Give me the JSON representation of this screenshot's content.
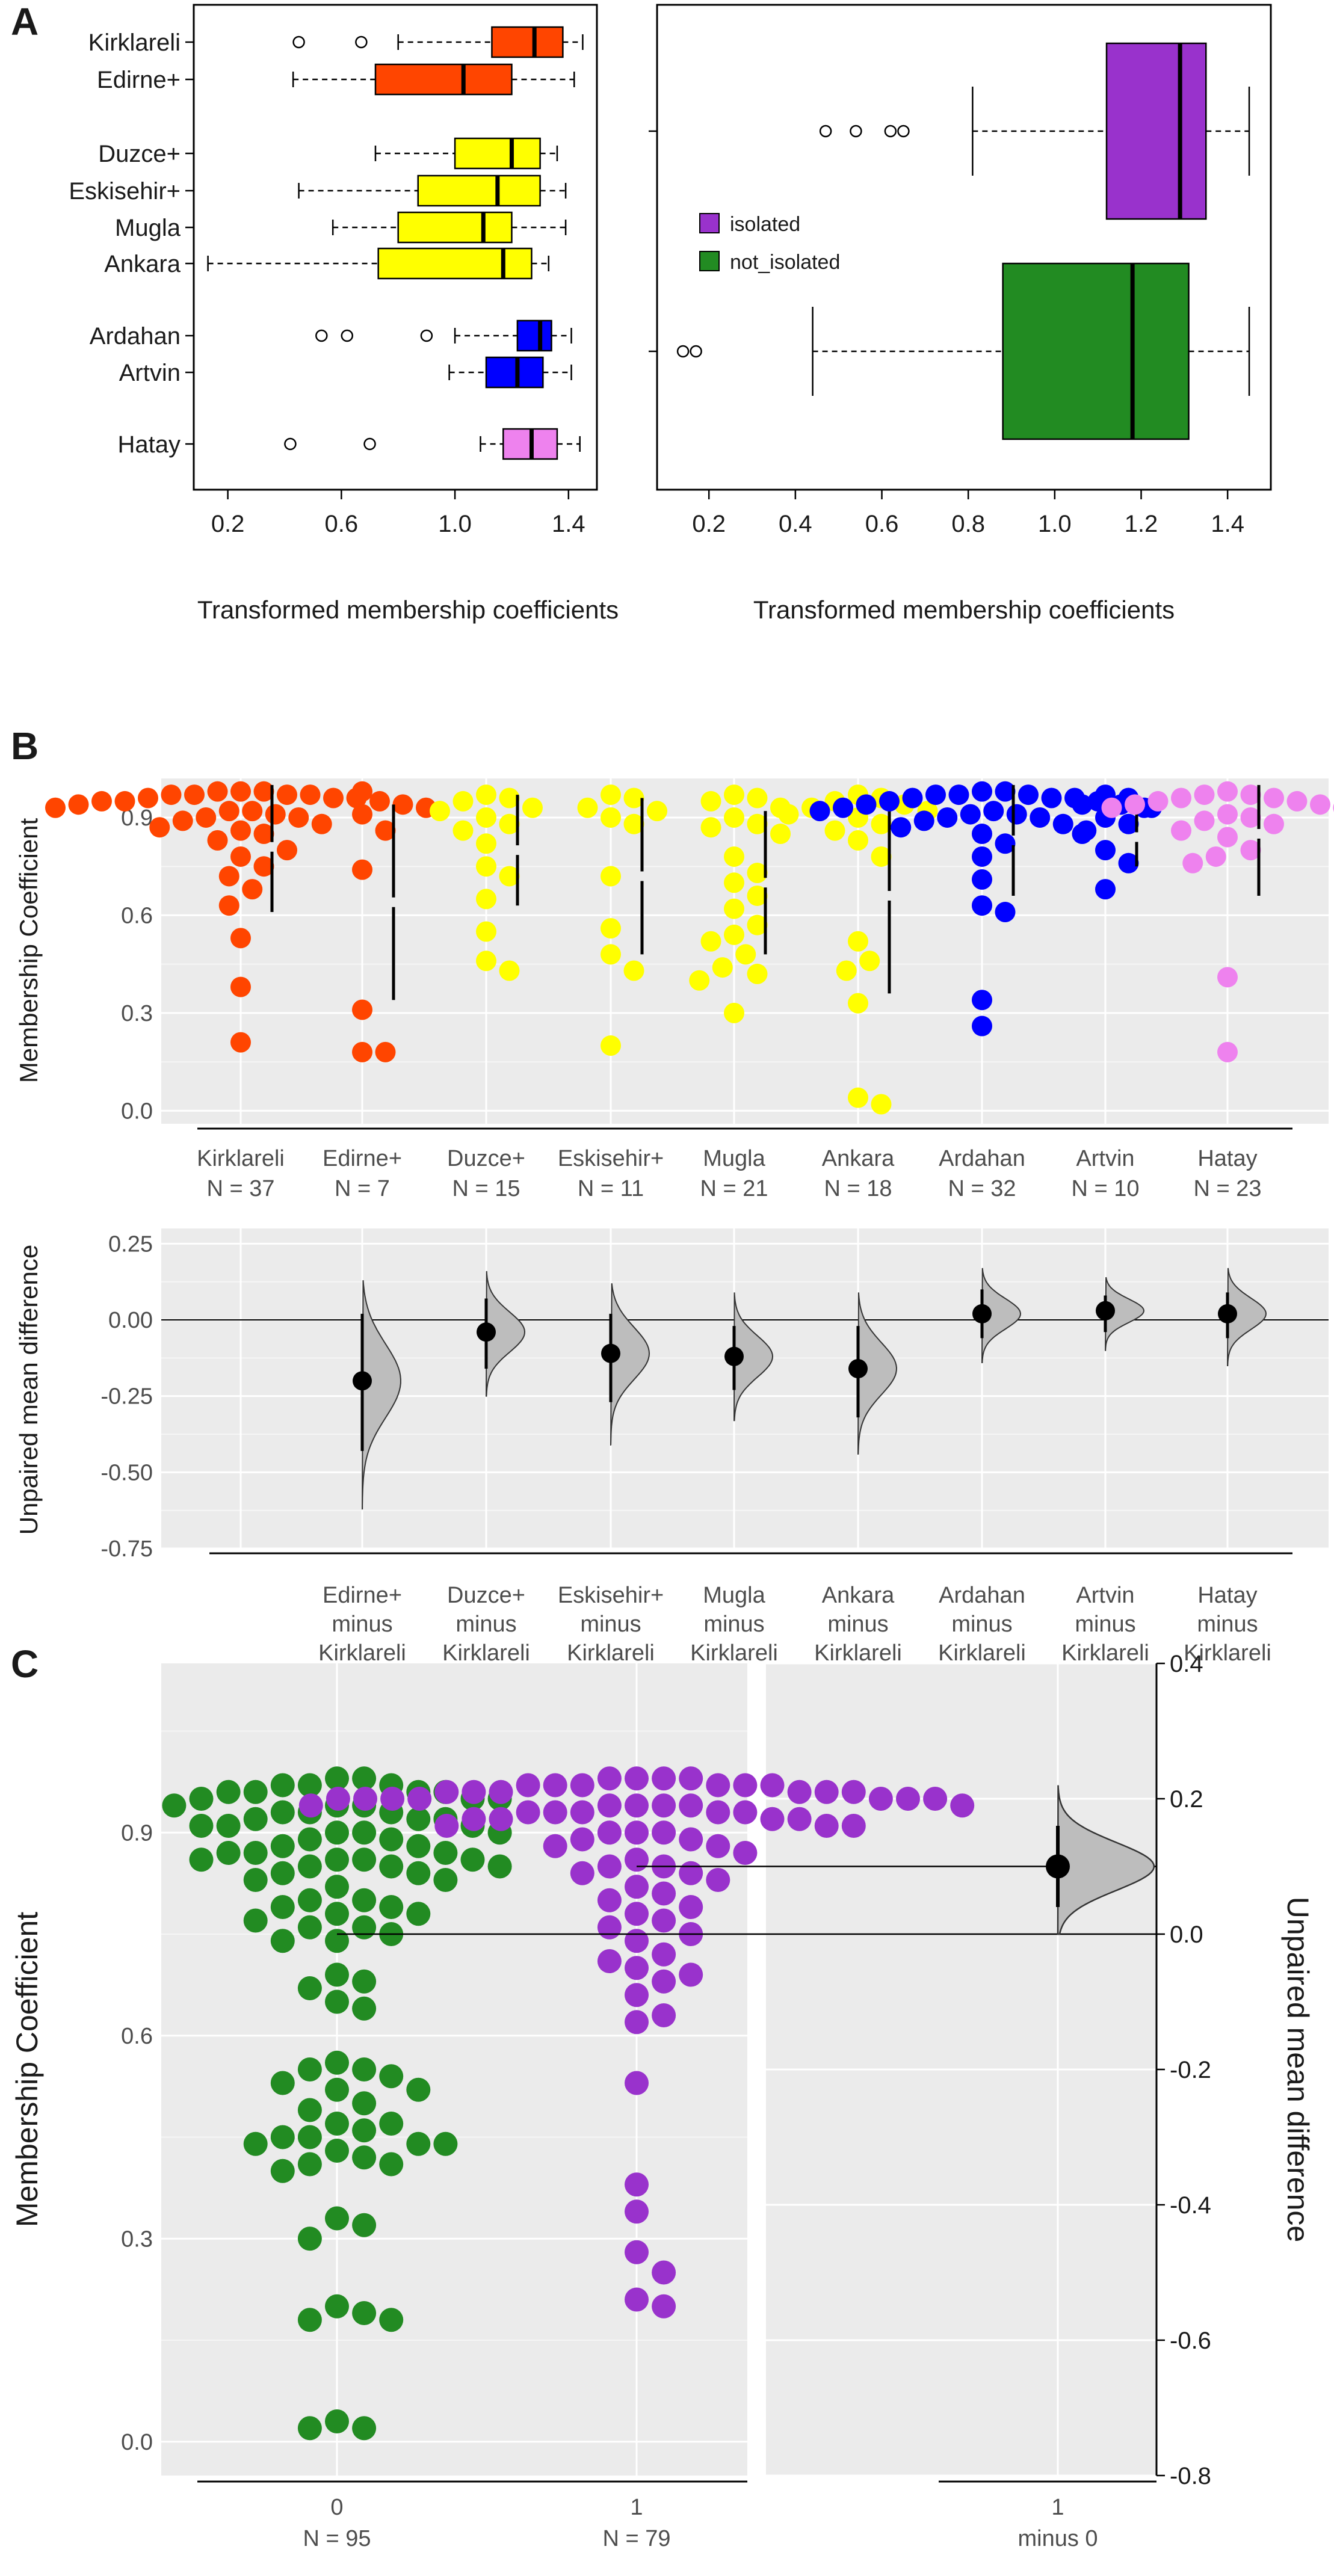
{
  "panels": {
    "a": "A",
    "b": "B",
    "c": "C"
  },
  "chart_data": [
    {
      "type": "boxplot",
      "panel": "A-left",
      "xlabel": "Transformed membership coefficients",
      "xlim": [
        0.08,
        1.5
      ],
      "xticks": [
        0.2,
        0.6,
        1.0,
        1.4
      ],
      "groups": [
        {
          "label": "Kirklareli",
          "color": "#ff4500",
          "q1": 1.13,
          "median": 1.28,
          "q3": 1.38,
          "wmin": 0.8,
          "wmax": 1.45,
          "outliers": [
            0.45,
            0.67
          ]
        },
        {
          "label": "Edirne+",
          "color": "#ff4500",
          "q1": 0.72,
          "median": 1.03,
          "q3": 1.2,
          "wmin": 0.43,
          "wmax": 1.42,
          "outliers": []
        },
        {
          "label": "Duzce+",
          "color": "#ffff00",
          "q1": 1.0,
          "median": 1.2,
          "q3": 1.3,
          "wmin": 0.72,
          "wmax": 1.36,
          "outliers": []
        },
        {
          "label": "Eskisehir+",
          "color": "#ffff00",
          "q1": 0.87,
          "median": 1.15,
          "q3": 1.3,
          "wmin": 0.45,
          "wmax": 1.39,
          "outliers": []
        },
        {
          "label": "Mugla",
          "color": "#ffff00",
          "q1": 0.8,
          "median": 1.1,
          "q3": 1.2,
          "wmin": 0.57,
          "wmax": 1.39,
          "outliers": []
        },
        {
          "label": "Ankara",
          "color": "#ffff00",
          "q1": 0.73,
          "median": 1.17,
          "q3": 1.27,
          "wmin": 0.13,
          "wmax": 1.33,
          "outliers": []
        },
        {
          "label": "Ardahan",
          "color": "#0000ff",
          "q1": 1.22,
          "median": 1.3,
          "q3": 1.34,
          "wmin": 1.0,
          "wmax": 1.41,
          "outliers": [
            0.53,
            0.62,
            0.9
          ]
        },
        {
          "label": "Artvin",
          "color": "#0000ff",
          "q1": 1.11,
          "median": 1.22,
          "q3": 1.31,
          "wmin": 0.98,
          "wmax": 1.41,
          "outliers": []
        },
        {
          "label": "Hatay",
          "color": "#ee82ee",
          "q1": 1.17,
          "median": 1.27,
          "q3": 1.36,
          "wmin": 1.09,
          "wmax": 1.44,
          "outliers": [
            0.42,
            0.7
          ]
        }
      ]
    },
    {
      "type": "boxplot",
      "panel": "A-right",
      "xlabel": "Transformed membership coefficients",
      "xlim": [
        0.08,
        1.5
      ],
      "xticks": [
        0.2,
        0.4,
        0.6,
        0.8,
        1.0,
        1.2,
        1.4
      ],
      "legend": [
        {
          "label": "isolated",
          "color": "#9932cc"
        },
        {
          "label": "not_isolated",
          "color": "#228b22"
        }
      ],
      "groups": [
        {
          "label": "isolated",
          "color": "#9932cc",
          "q1": 1.12,
          "median": 1.29,
          "q3": 1.35,
          "wmin": 0.81,
          "wmax": 1.45,
          "outliers": [
            0.47,
            0.54,
            0.62,
            0.65
          ]
        },
        {
          "label": "not_isolated",
          "color": "#228b22",
          "q1": 0.88,
          "median": 1.18,
          "q3": 1.31,
          "wmin": 0.44,
          "wmax": 1.45,
          "outliers": [
            0.14,
            0.17
          ]
        }
      ]
    },
    {
      "type": "swarm",
      "panel": "B-top",
      "ylabel": "Membership Coefficient",
      "ylim": [
        -0.04,
        1.02
      ],
      "yticks": [
        0.0,
        0.3,
        0.6,
        0.9
      ],
      "groups": [
        {
          "label": "Kirklareli",
          "n": "N = 37",
          "color": "#ff4500",
          "mean": 0.81,
          "sd": 0.2,
          "values": [
            0.98,
            0.98,
            0.98,
            0.97,
            0.97,
            0.97,
            0.97,
            0.96,
            0.96,
            0.96,
            0.95,
            0.95,
            0.95,
            0.94,
            0.94,
            0.93,
            0.93,
            0.92,
            0.92,
            0.91,
            0.9,
            0.9,
            0.89,
            0.88,
            0.87,
            0.86,
            0.85,
            0.83,
            0.8,
            0.78,
            0.75,
            0.72,
            0.68,
            0.63,
            0.53,
            0.38,
            0.21
          ]
        },
        {
          "label": "Edirne+",
          "n": "N = 7",
          "color": "#ff4500",
          "mean": 0.64,
          "sd": 0.3,
          "values": [
            0.98,
            0.91,
            0.86,
            0.74,
            0.31,
            0.18,
            0.18
          ]
        },
        {
          "label": "Duzce+",
          "n": "N = 15",
          "color": "#ffff00",
          "mean": 0.8,
          "sd": 0.17,
          "values": [
            0.97,
            0.96,
            0.95,
            0.93,
            0.92,
            0.9,
            0.88,
            0.86,
            0.82,
            0.75,
            0.72,
            0.65,
            0.55,
            0.46,
            0.43
          ]
        },
        {
          "label": "Eskisehir+",
          "n": "N = 11",
          "color": "#ffff00",
          "mean": 0.72,
          "sd": 0.24,
          "values": [
            0.97,
            0.96,
            0.93,
            0.92,
            0.9,
            0.88,
            0.72,
            0.56,
            0.48,
            0.43,
            0.2
          ]
        },
        {
          "label": "Mugla",
          "n": "N = 21",
          "color": "#ffff00",
          "mean": 0.7,
          "sd": 0.22,
          "values": [
            0.97,
            0.96,
            0.95,
            0.93,
            0.9,
            0.88,
            0.87,
            0.85,
            0.78,
            0.73,
            0.7,
            0.66,
            0.62,
            0.57,
            0.54,
            0.52,
            0.48,
            0.44,
            0.42,
            0.4,
            0.3
          ]
        },
        {
          "label": "Ankara",
          "n": "N = 18",
          "color": "#ffff00",
          "mean": 0.66,
          "sd": 0.3,
          "values": [
            0.97,
            0.96,
            0.95,
            0.94,
            0.93,
            0.92,
            0.91,
            0.9,
            0.88,
            0.86,
            0.83,
            0.78,
            0.52,
            0.46,
            0.43,
            0.33,
            0.04,
            0.02
          ]
        },
        {
          "label": "Ardahan",
          "n": "N = 32",
          "color": "#0000ff",
          "mean": 0.83,
          "sd": 0.17,
          "values": [
            0.98,
            0.98,
            0.97,
            0.97,
            0.97,
            0.96,
            0.96,
            0.96,
            0.95,
            0.95,
            0.94,
            0.94,
            0.93,
            0.93,
            0.92,
            0.92,
            0.91,
            0.91,
            0.9,
            0.9,
            0.89,
            0.88,
            0.87,
            0.86,
            0.85,
            0.82,
            0.78,
            0.71,
            0.63,
            0.61,
            0.34,
            0.26
          ]
        },
        {
          "label": "Artvin",
          "n": "N = 10",
          "color": "#0000ff",
          "mean": 0.84,
          "sd": 0.09,
          "values": [
            0.97,
            0.96,
            0.94,
            0.93,
            0.9,
            0.88,
            0.85,
            0.8,
            0.76,
            0.68
          ]
        },
        {
          "label": "Hatay",
          "n": "N = 23",
          "color": "#ee82ee",
          "mean": 0.85,
          "sd": 0.19,
          "values": [
            0.98,
            0.97,
            0.97,
            0.96,
            0.96,
            0.95,
            0.95,
            0.94,
            0.94,
            0.93,
            0.93,
            0.92,
            0.91,
            0.9,
            0.89,
            0.88,
            0.86,
            0.84,
            0.8,
            0.78,
            0.76,
            0.41,
            0.18
          ]
        }
      ]
    },
    {
      "type": "estimation",
      "panel": "B-bottom",
      "ylabel": "Unpaired mean difference",
      "ylim": [
        -0.75,
        0.3
      ],
      "yticks": [
        -0.75,
        -0.5,
        -0.25,
        0.0,
        0.25
      ],
      "comparisons": [
        {
          "label": [
            "Edirne+",
            "minus",
            "Kirklareli"
          ],
          "diff": -0.2,
          "ci": [
            -0.43,
            0.02
          ],
          "dist": [
            -0.62,
            0.13
          ]
        },
        {
          "label": [
            "Duzce+",
            "minus",
            "Kirklareli"
          ],
          "diff": -0.04,
          "ci": [
            -0.16,
            0.07
          ],
          "dist": [
            -0.25,
            0.16
          ]
        },
        {
          "label": [
            "Eskisehir+",
            "minus",
            "Kirklareli"
          ],
          "diff": -0.11,
          "ci": [
            -0.27,
            0.02
          ],
          "dist": [
            -0.41,
            0.12
          ]
        },
        {
          "label": [
            "Mugla",
            "minus",
            "Kirklareli"
          ],
          "diff": -0.12,
          "ci": [
            -0.23,
            -0.02
          ],
          "dist": [
            -0.33,
            0.09
          ]
        },
        {
          "label": [
            "Ankara",
            "minus",
            "Kirklareli"
          ],
          "diff": -0.16,
          "ci": [
            -0.32,
            -0.02
          ],
          "dist": [
            -0.44,
            0.09
          ]
        },
        {
          "label": [
            "Ardahan",
            "minus",
            "Kirklareli"
          ],
          "diff": 0.02,
          "ci": [
            -0.06,
            0.1
          ],
          "dist": [
            -0.14,
            0.17
          ]
        },
        {
          "label": [
            "Artvin",
            "minus",
            "Kirklareli"
          ],
          "diff": 0.03,
          "ci": [
            -0.04,
            0.08
          ],
          "dist": [
            -0.1,
            0.14
          ]
        },
        {
          "label": [
            "Hatay",
            "minus",
            "Kirklareli"
          ],
          "diff": 0.02,
          "ci": [
            -0.06,
            0.09
          ],
          "dist": [
            -0.15,
            0.17
          ]
        }
      ]
    },
    {
      "type": "swarm",
      "panel": "C",
      "ylabel_left": "Membership Coefficient",
      "ylabel_right": "Unpaired mean difference",
      "ylim": [
        -0.05,
        1.15
      ],
      "yticks": [
        0.0,
        0.3,
        0.6,
        0.9
      ],
      "yticks_right": [
        -0.8,
        -0.6,
        -0.4,
        -0.2,
        0.0,
        0.2,
        0.4
      ],
      "groups": [
        {
          "label": "0",
          "n": "N = 95",
          "color": "#228b22",
          "mean": 0.75,
          "values": [
            0.98,
            0.98,
            0.97,
            0.97,
            0.97,
            0.96,
            0.96,
            0.96,
            0.96,
            0.95,
            0.95,
            0.95,
            0.94,
            0.94,
            0.94,
            0.93,
            0.93,
            0.93,
            0.92,
            0.92,
            0.92,
            0.91,
            0.91,
            0.91,
            0.9,
            0.9,
            0.9,
            0.89,
            0.89,
            0.88,
            0.88,
            0.87,
            0.87,
            0.87,
            0.86,
            0.86,
            0.86,
            0.86,
            0.85,
            0.85,
            0.85,
            0.84,
            0.84,
            0.83,
            0.83,
            0.82,
            0.8,
            0.8,
            0.79,
            0.79,
            0.78,
            0.78,
            0.77,
            0.76,
            0.76,
            0.75,
            0.74,
            0.74,
            0.69,
            0.68,
            0.67,
            0.65,
            0.64,
            0.56,
            0.55,
            0.54,
            0.53,
            0.52,
            0.5,
            0.49,
            0.47,
            0.46,
            0.45,
            0.45,
            0.44,
            0.44,
            0.43,
            0.42,
            0.41,
            0.4,
            0.33,
            0.32,
            0.3,
            0.2,
            0.19,
            0.18,
            0.18,
            0.03,
            0.02,
            0.02,
            0.55,
            0.52,
            0.47,
            0.44,
            0.41
          ]
        },
        {
          "label": "1",
          "n": "N = 79",
          "color": "#9932cc",
          "mean": 0.85,
          "values": [
            0.98,
            0.98,
            0.98,
            0.98,
            0.97,
            0.97,
            0.97,
            0.97,
            0.97,
            0.97,
            0.96,
            0.96,
            0.96,
            0.96,
            0.96,
            0.96,
            0.95,
            0.95,
            0.95,
            0.95,
            0.95,
            0.95,
            0.95,
            0.94,
            0.94,
            0.94,
            0.94,
            0.94,
            0.94,
            0.93,
            0.93,
            0.93,
            0.93,
            0.93,
            0.92,
            0.92,
            0.92,
            0.92,
            0.91,
            0.91,
            0.91,
            0.9,
            0.9,
            0.9,
            0.89,
            0.89,
            0.88,
            0.88,
            0.87,
            0.86,
            0.85,
            0.85,
            0.84,
            0.84,
            0.83,
            0.82,
            0.81,
            0.8,
            0.79,
            0.78,
            0.77,
            0.76,
            0.75,
            0.74,
            0.72,
            0.71,
            0.7,
            0.69,
            0.68,
            0.66,
            0.63,
            0.62,
            0.53,
            0.38,
            0.34,
            0.28,
            0.25,
            0.21,
            0.2
          ]
        },
        {
          "label": "1",
          "n": "minus 0",
          "diff": 0.1,
          "ci": [
            0.04,
            0.16
          ],
          "dist": [
            0.0,
            0.22
          ]
        }
      ]
    }
  ]
}
